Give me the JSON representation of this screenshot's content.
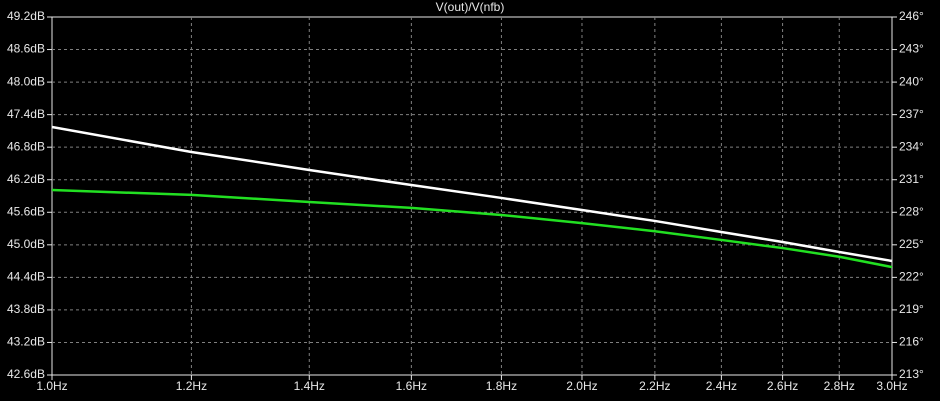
{
  "chart_data": {
    "type": "line",
    "title": "V(out)/V(nfb)",
    "x": [
      1.0,
      1.2,
      1.4,
      1.6,
      1.8,
      2.0,
      2.2,
      2.4,
      2.6,
      2.8,
      3.0
    ],
    "xscale": "log",
    "xlim": [
      1.0,
      3.0
    ],
    "xticks": [
      {
        "value": 1.0,
        "label": "1.0Hz"
      },
      {
        "value": 1.2,
        "label": "1.2Hz"
      },
      {
        "value": 1.4,
        "label": "1.4Hz"
      },
      {
        "value": 1.6,
        "label": "1.6Hz"
      },
      {
        "value": 1.8,
        "label": "1.8Hz"
      },
      {
        "value": 2.0,
        "label": "2.0Hz"
      },
      {
        "value": 2.2,
        "label": "2.2Hz"
      },
      {
        "value": 2.4,
        "label": "2.4Hz"
      },
      {
        "value": 2.6,
        "label": "2.6Hz"
      },
      {
        "value": 2.8,
        "label": "2.8Hz"
      },
      {
        "value": 3.0,
        "label": "3.0Hz"
      }
    ],
    "ylim": [
      42.6,
      49.2
    ],
    "yticks": [
      {
        "value": 42.6,
        "label": "42.6dB"
      },
      {
        "value": 43.2,
        "label": "43.2dB"
      },
      {
        "value": 43.8,
        "label": "43.8dB"
      },
      {
        "value": 44.4,
        "label": "44.4dB"
      },
      {
        "value": 45.0,
        "label": "45.0dB"
      },
      {
        "value": 45.6,
        "label": "45.6dB"
      },
      {
        "value": 46.2,
        "label": "46.2dB"
      },
      {
        "value": 46.8,
        "label": "46.8dB"
      },
      {
        "value": 47.4,
        "label": "47.4dB"
      },
      {
        "value": 48.0,
        "label": "48.0dB"
      },
      {
        "value": 48.6,
        "label": "48.6dB"
      },
      {
        "value": 49.2,
        "label": "49.2dB"
      }
    ],
    "y2lim": [
      213,
      246
    ],
    "y2ticks": [
      {
        "value": 213,
        "label": "213°"
      },
      {
        "value": 216,
        "label": "216°"
      },
      {
        "value": 219,
        "label": "219°"
      },
      {
        "value": 222,
        "label": "222°"
      },
      {
        "value": 225,
        "label": "225°"
      },
      {
        "value": 228,
        "label": "228°"
      },
      {
        "value": 231,
        "label": "231°"
      },
      {
        "value": 234,
        "label": "234°"
      },
      {
        "value": 237,
        "label": "237°"
      },
      {
        "value": 240,
        "label": "240°"
      },
      {
        "value": 243,
        "label": "243°"
      },
      {
        "value": 246,
        "label": "246°"
      }
    ],
    "grid": true,
    "series": [
      {
        "color": "#22e022",
        "values": [
          46.01,
          45.92,
          45.79,
          45.68,
          45.55,
          45.4,
          45.25,
          45.09,
          44.94,
          44.78,
          44.59
        ]
      },
      {
        "color": "#ffffff",
        "axis": "y2",
        "values": [
          235.86,
          233.56,
          231.9,
          230.51,
          229.32,
          228.21,
          227.2,
          226.18,
          225.26,
          224.34,
          223.51
        ]
      }
    ]
  }
}
